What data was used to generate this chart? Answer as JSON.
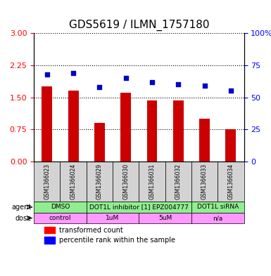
{
  "title": "GDS5619 / ILMN_1757180",
  "samples": [
    "GSM1366023",
    "GSM1366024",
    "GSM1366029",
    "GSM1366030",
    "GSM1366031",
    "GSM1366032",
    "GSM1366033",
    "GSM1366034"
  ],
  "transformed_counts": [
    1.75,
    1.65,
    0.9,
    1.6,
    1.42,
    1.42,
    1.0,
    0.76
  ],
  "percentile_ranks": [
    68,
    69,
    58,
    65,
    62,
    60,
    59,
    55
  ],
  "ylim_left": [
    0,
    3
  ],
  "ylim_right": [
    0,
    100
  ],
  "yticks_left": [
    0,
    0.75,
    1.5,
    2.25,
    3
  ],
  "yticks_right": [
    0,
    25,
    50,
    75,
    100
  ],
  "bar_color": "#cc0000",
  "dot_color": "#0000cc",
  "bar_width": 0.4,
  "agent_groups": [
    {
      "label": "DMSO",
      "cols": [
        0,
        1
      ],
      "color": "#90ee90"
    },
    {
      "label": "DOT1L inhibitor [1] EPZ004777",
      "cols": [
        2,
        3,
        4,
        5
      ],
      "color": "#90ee90"
    },
    {
      "label": "DOT1L siRNA",
      "cols": [
        6,
        7
      ],
      "color": "#90ee90"
    }
  ],
  "dose_groups": [
    {
      "label": "control",
      "cols": [
        0,
        1
      ],
      "color": "#ff99ff"
    },
    {
      "label": "1uM",
      "cols": [
        2,
        3
      ],
      "color": "#ff99ff"
    },
    {
      "label": "5uM",
      "cols": [
        4,
        5
      ],
      "color": "#ff99ff"
    },
    {
      "label": "n/a",
      "cols": [
        6,
        7
      ],
      "color": "#ff99ff"
    }
  ],
  "xlabel_area_color": "#d3d3d3",
  "legend_items": [
    {
      "label": "transformed count",
      "color": "#cc0000",
      "marker": "s"
    },
    {
      "label": "percentile rank within the sample",
      "color": "#0000cc",
      "marker": "s"
    }
  ]
}
